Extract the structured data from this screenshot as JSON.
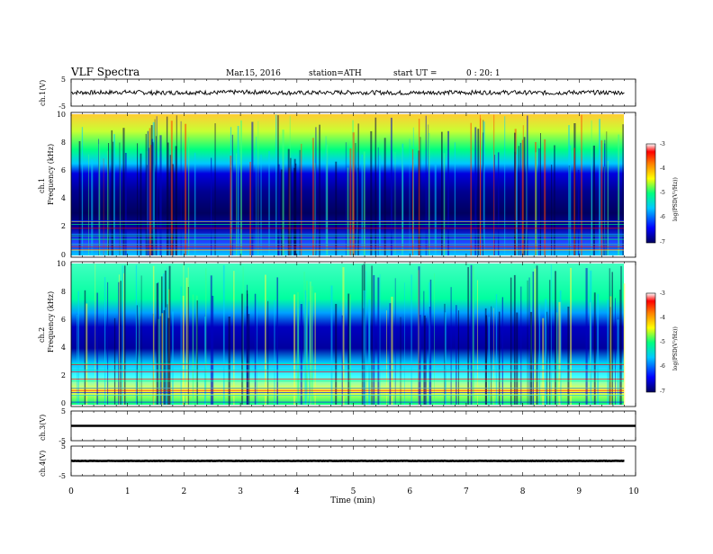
{
  "header": {
    "title": "VLF Spectra",
    "date": "Mar.15, 2016",
    "station": "station=ATH",
    "start_label": "start UT =",
    "start_time": "0 : 20: 1"
  },
  "colorbar": {
    "label": "log(PSD(V²/Hz))",
    "ticks": [
      "-3",
      "-4",
      "-5",
      "-6",
      "-7"
    ],
    "range": [
      -7,
      -3
    ],
    "colors": [
      "#000060",
      "#0000ff",
      "#00c8ff",
      "#00ff80",
      "#ffff00",
      "#ff8000",
      "#ff0000",
      "#ffffff"
    ]
  },
  "chart_data": [
    {
      "type": "line",
      "panel": "ch1-waveform",
      "ylabel": "ch.1(V)",
      "ylim": [
        -5,
        5
      ],
      "yticks": [
        "5",
        "-5"
      ],
      "xlim": [
        0,
        10
      ],
      "x": [
        0,
        0.5,
        1,
        1.5,
        2,
        2.5,
        3,
        3.5,
        4,
        4.5,
        5,
        5.5,
        6,
        6.5,
        7,
        7.5,
        8,
        8.5,
        9,
        9.5,
        9.8
      ],
      "y": [
        0.1,
        0.0,
        0.2,
        -0.1,
        0.1,
        0.0,
        0.2,
        0.1,
        -0.1,
        0.0,
        0.1,
        0.0,
        -0.1,
        0.1,
        0.0,
        0.1,
        0.0,
        -0.1,
        0.1,
        0.0,
        0.1
      ]
    },
    {
      "type": "heatmap",
      "panel": "ch1-spectrogram",
      "ylabel": "ch.1",
      "ylabel2": "Frequency (kHz)",
      "ylim": [
        0,
        10
      ],
      "yticks": [
        "0",
        "2",
        "4",
        "6",
        "8",
        "10"
      ],
      "xlim": [
        0,
        10
      ],
      "band_levels_log_psd": [
        {
          "f": [
            0,
            1
          ],
          "level": -5.2
        },
        {
          "f": [
            1,
            2
          ],
          "level": -6.6
        },
        {
          "f": [
            2,
            3.5
          ],
          "level": -6.8
        },
        {
          "f": [
            3.5,
            5.5
          ],
          "level": -6.4
        },
        {
          "f": [
            5.5,
            6.5
          ],
          "level": -5.8
        },
        {
          "f": [
            6.5,
            8
          ],
          "level": -4.9
        },
        {
          "f": [
            8,
            10
          ],
          "level": -4.3
        }
      ]
    },
    {
      "type": "heatmap",
      "panel": "ch2-spectrogram",
      "ylabel": "ch.2",
      "ylabel2": "Frequency (kHz)",
      "ylim": [
        0,
        10
      ],
      "yticks": [
        "0",
        "2",
        "4",
        "6",
        "8",
        "10"
      ],
      "xlim": [
        0,
        10
      ],
      "band_levels_log_psd": [
        {
          "f": [
            0,
            1
          ],
          "level": -5.0
        },
        {
          "f": [
            1,
            2.5
          ],
          "level": -5.4
        },
        {
          "f": [
            2.5,
            3.5
          ],
          "level": -6.2
        },
        {
          "f": [
            3.5,
            5
          ],
          "level": -6.5
        },
        {
          "f": [
            5,
            6.5
          ],
          "level": -6.0
        },
        {
          "f": [
            6.5,
            10
          ],
          "level": -5.4
        }
      ]
    },
    {
      "type": "line",
      "panel": "ch3-waveform",
      "ylabel": "ch.3(V)",
      "ylim": [
        -5,
        5
      ],
      "yticks": [
        "5",
        "-5"
      ],
      "xlim": [
        0,
        10
      ],
      "x": [
        0,
        10
      ],
      "y": [
        0,
        0
      ]
    },
    {
      "type": "line",
      "panel": "ch4-waveform",
      "ylabel": "ch.4(V)",
      "ylim": [
        -5,
        5
      ],
      "yticks": [
        "5",
        "-5"
      ],
      "xlim": [
        0,
        10
      ],
      "x": [
        0,
        9.8
      ],
      "y": [
        0,
        0
      ]
    }
  ],
  "x_axis": {
    "label": "Time (min)",
    "ticks": [
      "0",
      "1",
      "2",
      "3",
      "4",
      "5",
      "6",
      "7",
      "8",
      "9",
      "10"
    ]
  }
}
